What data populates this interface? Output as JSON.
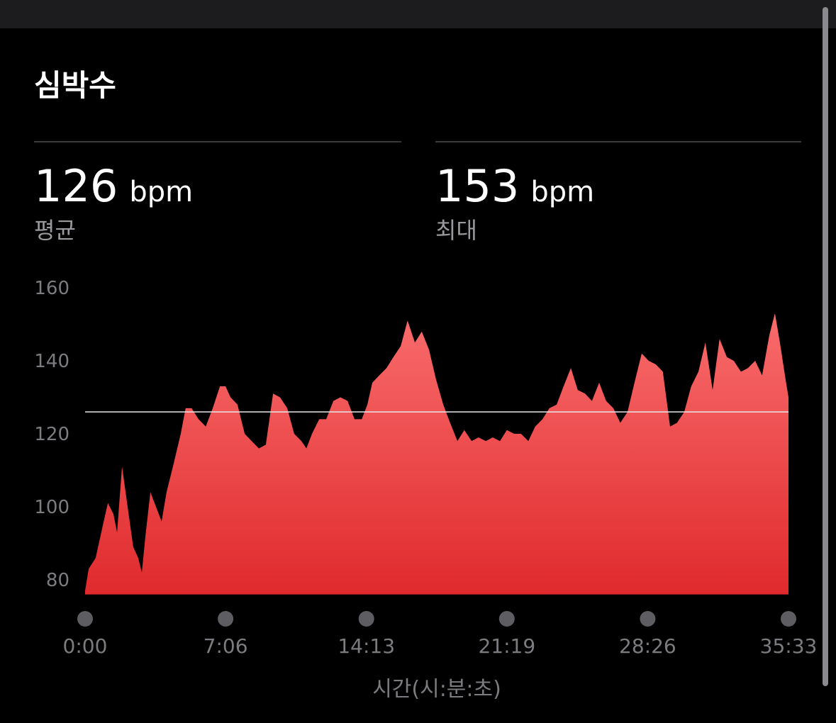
{
  "header": {
    "title": "심박수"
  },
  "stats": [
    {
      "value": 126,
      "unit": "bpm",
      "label": "평균"
    },
    {
      "value": 153,
      "unit": "bpm",
      "label": "최대"
    }
  ],
  "chart_data": {
    "type": "area",
    "x_label": "시간(시:분:초)",
    "x": [
      0,
      11,
      32,
      54,
      69,
      86,
      97,
      112,
      129,
      146,
      161,
      172,
      183,
      198,
      215,
      232,
      247,
      269,
      290,
      305,
      323,
      344,
      366,
      387,
      409,
      426,
      441,
      462,
      484,
      505,
      527,
      548,
      570,
      591,
      613,
      634,
      656,
      671,
      688,
      710,
      731,
      753,
      774,
      796,
      817,
      839,
      856,
      871,
      892,
      914,
      935,
      957,
      978,
      1000,
      1021,
      1043,
      1064,
      1086,
      1107,
      1129,
      1150,
      1172,
      1193,
      1215,
      1236,
      1258,
      1279,
      1301,
      1322,
      1344,
      1365,
      1387,
      1408,
      1430,
      1451,
      1473,
      1494,
      1516,
      1537,
      1559,
      1580,
      1602,
      1623,
      1645,
      1666,
      1688,
      1709,
      1731,
      1752,
      1774,
      1795,
      1817,
      1838,
      1860,
      1881,
      1903,
      1924,
      1946,
      1967,
      1989,
      2010,
      2032,
      2053,
      2075,
      2092,
      2107,
      2124,
      2133
    ],
    "values": [
      77,
      83,
      86,
      95,
      101,
      98,
      93,
      111,
      100,
      89,
      86,
      82,
      92,
      104,
      100,
      96,
      104,
      112,
      120,
      127,
      127,
      124,
      122,
      127,
      133,
      133,
      130,
      128,
      120,
      118,
      116,
      117,
      131,
      130,
      127,
      120,
      118,
      116,
      120,
      124,
      124,
      129,
      130,
      129,
      124,
      124,
      128,
      134,
      136,
      138,
      141,
      144,
      151,
      145,
      148,
      143,
      135,
      128,
      123,
      118,
      121,
      118,
      119,
      118,
      119,
      118,
      121,
      120,
      120,
      118,
      122,
      124,
      127,
      128,
      133,
      138,
      132,
      131,
      129,
      134,
      129,
      127,
      123,
      126,
      134,
      142,
      140,
      139,
      137,
      122,
      123,
      126,
      133,
      137,
      145,
      132,
      146,
      141,
      140,
      137,
      138,
      140,
      136,
      147,
      153,
      145,
      135,
      130
    ],
    "xlim": [
      0,
      2133
    ],
    "xticks": [
      {
        "value": 0,
        "label": "0:00"
      },
      {
        "value": 426,
        "label": "7:06"
      },
      {
        "value": 853,
        "label": "14:13"
      },
      {
        "value": 1279,
        "label": "21:19"
      },
      {
        "value": 1706,
        "label": "28:26"
      },
      {
        "value": 2133,
        "label": "35:33"
      }
    ],
    "ylim": [
      76,
      161
    ],
    "yticks": [
      80,
      100,
      120,
      140,
      160
    ],
    "color_top": "#f96c6c",
    "color_bottom": "#e02a2d"
  }
}
